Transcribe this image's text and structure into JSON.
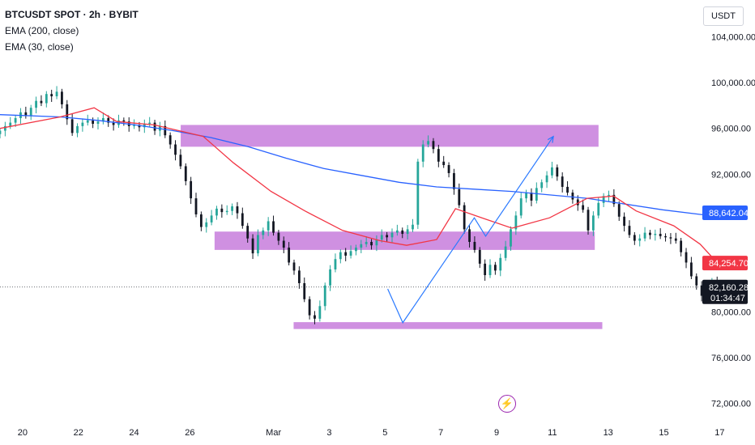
{
  "legend": {
    "title": "BTCUSDT SPOT · 2h · BYBIT",
    "ema200": "EMA (200, close)",
    "ema30": "EMA (30, close)"
  },
  "currency": "USDT",
  "event_icon": "lightning-icon",
  "colors": {
    "up": "#26a69a",
    "down": "#131722",
    "ema200": "#2962ff",
    "ema30": "#f23645",
    "zone": "#c77ddc",
    "projection": "#2979ff"
  },
  "chart_data": {
    "type": "candlestick",
    "y_ticks": [
      "104,000.00",
      "100,000.00",
      "96,000.00",
      "92,000.00",
      "76,000.00",
      "72,000.00"
    ],
    "y_ticks_values": [
      104000,
      100000,
      96000,
      92000,
      76000,
      72000
    ],
    "x_ticks": [
      "20",
      "22",
      "24",
      "26",
      "Mar",
      "3",
      "5",
      "7",
      "9",
      "11",
      "13",
      "15",
      "17"
    ],
    "ylim": [
      70500,
      107200
    ],
    "x_range_days": [
      -0.6,
      17.95
    ],
    "price_labels": {
      "ema200": {
        "text": "88,642.04",
        "value": 88642.04
      },
      "ema30": {
        "text": "84,254.70",
        "value": 84254.7
      },
      "last": {
        "text": "82,160.28",
        "value": 82160.28,
        "countdown": "01:34:47"
      },
      "hidden_tick": {
        "text": "80,000.00",
        "value": 80000
      }
    },
    "zones": [
      {
        "from_day": 4.2,
        "to_day": 15.3,
        "low": 94400,
        "high": 96300
      },
      {
        "from_day": 5.1,
        "to_day": 15.2,
        "low": 85400,
        "high": 87000
      },
      {
        "from_day": 7.2,
        "to_day": 15.4,
        "low": 78500,
        "high": 79100
      }
    ],
    "projection": [
      [
        9.7,
        82000
      ],
      [
        10.1,
        79050
      ],
      [
        12.0,
        88200
      ],
      [
        12.3,
        86600
      ],
      [
        14.1,
        95300
      ]
    ],
    "ema200_line": [
      [
        -0.6,
        97200
      ],
      [
        1,
        97000
      ],
      [
        2,
        96700
      ],
      [
        3,
        96300
      ],
      [
        4,
        95800
      ],
      [
        5,
        95200
      ],
      [
        6,
        94400
      ],
      [
        7,
        93400
      ],
      [
        8,
        92500
      ],
      [
        9,
        91900
      ],
      [
        10,
        91300
      ],
      [
        11,
        90900
      ],
      [
        12,
        90700
      ],
      [
        13,
        90500
      ],
      [
        14,
        90200
      ],
      [
        15,
        89900
      ],
      [
        16,
        89400
      ],
      [
        17,
        88900
      ],
      [
        18,
        88500
      ],
      [
        18.45,
        88350
      ]
    ],
    "ema30_line": [
      [
        -0.6,
        96000
      ],
      [
        1,
        97000
      ],
      [
        1.9,
        97800
      ],
      [
        2.5,
        96600
      ],
      [
        3.5,
        96300
      ],
      [
        4.8,
        95300
      ],
      [
        5.6,
        93000
      ],
      [
        6.6,
        90500
      ],
      [
        7.5,
        88800
      ],
      [
        8.5,
        87100
      ],
      [
        9.5,
        86200
      ],
      [
        10.2,
        85800
      ],
      [
        11,
        86300
      ],
      [
        11.5,
        89000
      ],
      [
        12.2,
        88200
      ],
      [
        13,
        87300
      ],
      [
        14,
        88200
      ],
      [
        15,
        89900
      ],
      [
        15.7,
        90100
      ],
      [
        16.3,
        88800
      ],
      [
        17.3,
        87500
      ],
      [
        18,
        85900
      ],
      [
        18.45,
        84300
      ]
    ],
    "candles_close": [
      95800,
      96200,
      96500,
      96900,
      97400,
      97100,
      97800,
      98400,
      98200,
      99000,
      98800,
      99200,
      98100,
      96800,
      95600,
      96200,
      96500,
      96700,
      96400,
      96600,
      96900,
      96500,
      96300,
      96700,
      96600,
      96200,
      96300,
      96100,
      96400,
      96500,
      95800,
      96200,
      95400,
      94600,
      93700,
      92700,
      91400,
      89900,
      88500,
      87400,
      87800,
      88400,
      89000,
      88700,
      88800,
      89200,
      88600,
      87500,
      86400,
      85100,
      86700,
      87100,
      87900,
      86900,
      86200,
      85600,
      84300,
      83600,
      82500,
      81100,
      79700,
      79400,
      80500,
      82300,
      83700,
      84600,
      85200,
      84900,
      85300,
      85600,
      85900,
      86100,
      85800,
      86300,
      86700,
      86500,
      86900,
      87100,
      86800,
      87200,
      87600,
      93100,
      94600,
      94900,
      94200,
      93100,
      92800,
      92100,
      90700,
      89300,
      87200,
      86100,
      85400,
      84200,
      83200,
      84100,
      83600,
      84700,
      85700,
      87200,
      88400,
      89900,
      90400,
      89700,
      90800,
      91300,
      91900,
      92600,
      91800,
      90900,
      90400,
      89800,
      89300,
      88900,
      87100,
      88400,
      89500,
      90100,
      90200,
      89400,
      88300,
      87500,
      86700,
      86200,
      86400,
      86900,
      86700,
      86800,
      86600,
      86500,
      86400,
      86200,
      85200,
      84300,
      83100,
      82300,
      81400,
      82000,
      82700,
      82160
    ]
  }
}
